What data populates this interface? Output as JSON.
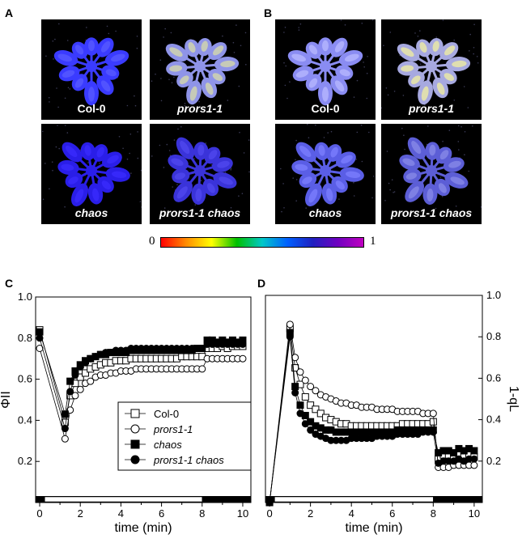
{
  "panels": {
    "a_letter": "A",
    "b_letter": "B",
    "c_letter": "C",
    "d_letter": "D"
  },
  "images": {
    "a": [
      {
        "label": "Col-0",
        "italic": false,
        "tint": "#3a3bff",
        "highlight": "#5a5cff"
      },
      {
        "label": "prors1-1",
        "italic": true,
        "tint": "#8f94e8",
        "highlight": "#d8dca8"
      },
      {
        "label": "chaos",
        "italic": true,
        "tint": "#2a1ee8",
        "highlight": "#3b2cff"
      },
      {
        "label": "prors1-1 chaos",
        "italic": true,
        "tint": "#3a33d9",
        "highlight": "#5149ef"
      }
    ],
    "b": [
      {
        "label": "Col-0",
        "italic": false,
        "tint": "#8a8cf2",
        "highlight": "#b8baff"
      },
      {
        "label": "prors1-1",
        "italic": true,
        "tint": "#a7a9e0",
        "highlight": "#f2f0a0"
      },
      {
        "label": "chaos",
        "italic": true,
        "tint": "#5a5ee6",
        "highlight": "#7d80ff"
      },
      {
        "label": "prors1-1 chaos",
        "italic": true,
        "tint": "#5c5ed6",
        "highlight": "#8a8ce8"
      }
    ]
  },
  "colorbar": {
    "min_label": "0",
    "max_label": "1",
    "colors": [
      "#ff0000",
      "#ff8c00",
      "#ffff00",
      "#00c000",
      "#00c8c8",
      "#0060ff",
      "#2020c0",
      "#7000c0",
      "#c000c0"
    ]
  },
  "chart_data": [
    {
      "type": "line",
      "panel": "C",
      "ylabel": "ΦII",
      "xlabel": "time (min)",
      "xlim": [
        -0.2,
        10.4
      ],
      "ylim": [
        0.0,
        1.0
      ],
      "xticks": [
        0,
        2,
        4,
        6,
        8,
        10
      ],
      "yticks": [
        0.2,
        0.4,
        0.6,
        0.8,
        1.0
      ],
      "light_bar": {
        "light_from": 0.25,
        "light_to": 8.0
      },
      "legend": {
        "position": "bottom-right"
      },
      "series": [
        {
          "name": "Col-0",
          "marker": "open-square",
          "x": [
            0,
            1.25,
            1.5,
            1.75,
            2.0,
            2.25,
            2.5,
            2.75,
            3.0,
            3.25,
            3.5,
            3.75,
            4.0,
            4.25,
            4.5,
            4.75,
            5.0,
            5.25,
            5.5,
            5.75,
            6.0,
            6.25,
            6.5,
            6.75,
            7.0,
            7.25,
            7.5,
            7.75,
            8.0,
            8.25,
            8.5,
            8.75,
            9.0,
            9.25,
            9.5,
            9.75,
            10.0
          ],
          "y": [
            0.84,
            0.39,
            0.52,
            0.58,
            0.61,
            0.63,
            0.65,
            0.66,
            0.67,
            0.68,
            0.68,
            0.69,
            0.69,
            0.69,
            0.7,
            0.7,
            0.7,
            0.7,
            0.7,
            0.7,
            0.7,
            0.7,
            0.7,
            0.7,
            0.71,
            0.71,
            0.71,
            0.71,
            0.71,
            0.75,
            0.75,
            0.75,
            0.76,
            0.75,
            0.76,
            0.76,
            0.76
          ]
        },
        {
          "name": "prors1-1",
          "marker": "open-circle",
          "x": [
            0,
            1.25,
            1.5,
            1.75,
            2.0,
            2.25,
            2.5,
            2.75,
            3.0,
            3.25,
            3.5,
            3.75,
            4.0,
            4.25,
            4.5,
            4.75,
            5.0,
            5.25,
            5.5,
            5.75,
            6.0,
            6.25,
            6.5,
            6.75,
            7.0,
            7.25,
            7.5,
            7.75,
            8.0,
            8.25,
            8.5,
            8.75,
            9.0,
            9.25,
            9.5,
            9.75,
            10.0
          ],
          "y": [
            0.75,
            0.31,
            0.45,
            0.52,
            0.55,
            0.58,
            0.59,
            0.61,
            0.62,
            0.62,
            0.63,
            0.63,
            0.64,
            0.64,
            0.64,
            0.65,
            0.65,
            0.65,
            0.65,
            0.65,
            0.65,
            0.65,
            0.65,
            0.65,
            0.65,
            0.65,
            0.65,
            0.65,
            0.65,
            0.7,
            0.7,
            0.7,
            0.7,
            0.7,
            0.7,
            0.7,
            0.7
          ]
        },
        {
          "name": "chaos",
          "marker": "filled-square",
          "x": [
            0,
            1.25,
            1.5,
            1.75,
            2.0,
            2.25,
            2.5,
            2.75,
            3.0,
            3.25,
            3.5,
            3.75,
            4.0,
            4.25,
            4.5,
            4.75,
            5.0,
            5.25,
            5.5,
            5.75,
            6.0,
            6.25,
            6.5,
            6.75,
            7.0,
            7.25,
            7.5,
            7.75,
            8.0,
            8.25,
            8.5,
            8.75,
            9.0,
            9.25,
            9.5,
            9.75,
            10.0
          ],
          "y": [
            0.83,
            0.43,
            0.59,
            0.64,
            0.67,
            0.69,
            0.7,
            0.71,
            0.72,
            0.72,
            0.73,
            0.73,
            0.73,
            0.73,
            0.74,
            0.74,
            0.74,
            0.74,
            0.74,
            0.74,
            0.74,
            0.74,
            0.74,
            0.74,
            0.74,
            0.74,
            0.74,
            0.75,
            0.75,
            0.79,
            0.79,
            0.78,
            0.79,
            0.78,
            0.79,
            0.78,
            0.79
          ]
        },
        {
          "name": "prors1-1 chaos",
          "marker": "filled-circle",
          "x": [
            0,
            1.25,
            1.5,
            1.75,
            2.0,
            2.25,
            2.5,
            2.75,
            3.0,
            3.25,
            3.5,
            3.75,
            4.0,
            4.25,
            4.5,
            4.75,
            5.0,
            5.25,
            5.5,
            5.75,
            6.0,
            6.25,
            6.5,
            6.75,
            7.0,
            7.25,
            7.5,
            7.75,
            8.0,
            8.25,
            8.5,
            8.75,
            9.0,
            9.25,
            9.5,
            9.75,
            10.0
          ],
          "y": [
            0.8,
            0.36,
            0.54,
            0.62,
            0.66,
            0.68,
            0.7,
            0.71,
            0.72,
            0.73,
            0.73,
            0.74,
            0.74,
            0.74,
            0.75,
            0.75,
            0.75,
            0.75,
            0.75,
            0.75,
            0.75,
            0.75,
            0.75,
            0.75,
            0.75,
            0.75,
            0.75,
            0.75,
            0.75,
            0.77,
            0.77,
            0.77,
            0.77,
            0.77,
            0.77,
            0.77,
            0.77
          ]
        }
      ]
    },
    {
      "type": "line",
      "panel": "D",
      "ylabel": "1-qL",
      "xlabel": "time (min)",
      "xlim": [
        -0.2,
        10.4
      ],
      "ylim": [
        0.0,
        1.0
      ],
      "xticks": [
        0,
        2,
        4,
        6,
        8,
        10
      ],
      "yticks": [
        0.2,
        0.4,
        0.6,
        0.8,
        1.0
      ],
      "light_bar": {
        "light_from": 0.25,
        "light_to": 8.0
      },
      "series": [
        {
          "name": "Col-0",
          "marker": "open-square",
          "x": [
            0,
            1.0,
            1.25,
            1.5,
            1.75,
            2.0,
            2.25,
            2.5,
            2.75,
            3.0,
            3.25,
            3.5,
            3.75,
            4.0,
            4.25,
            4.5,
            4.75,
            5.0,
            5.25,
            5.5,
            5.75,
            6.0,
            6.25,
            6.5,
            6.75,
            7.0,
            7.25,
            7.5,
            7.75,
            8.0,
            8.25,
            8.5,
            8.75,
            9.0,
            9.25,
            9.5,
            9.75,
            10.0
          ],
          "y": [
            0.0,
            0.84,
            0.65,
            0.57,
            0.51,
            0.47,
            0.45,
            0.43,
            0.41,
            0.4,
            0.39,
            0.38,
            0.38,
            0.37,
            0.37,
            0.37,
            0.37,
            0.37,
            0.37,
            0.37,
            0.37,
            0.37,
            0.37,
            0.38,
            0.38,
            0.38,
            0.38,
            0.38,
            0.38,
            0.39,
            0.21,
            0.23,
            0.23,
            0.22,
            0.23,
            0.22,
            0.23,
            0.22
          ]
        },
        {
          "name": "prors1-1",
          "marker": "open-circle",
          "x": [
            0,
            1.0,
            1.25,
            1.5,
            1.75,
            2.0,
            2.25,
            2.5,
            2.75,
            3.0,
            3.25,
            3.5,
            3.75,
            4.0,
            4.25,
            4.5,
            4.75,
            5.0,
            5.25,
            5.5,
            5.75,
            6.0,
            6.25,
            6.5,
            6.75,
            7.0,
            7.25,
            7.5,
            7.75,
            8.0,
            8.25,
            8.5,
            8.75,
            9.0,
            9.25,
            9.5,
            9.75,
            10.0
          ],
          "y": [
            0.0,
            0.86,
            0.7,
            0.63,
            0.59,
            0.56,
            0.54,
            0.52,
            0.51,
            0.5,
            0.49,
            0.48,
            0.48,
            0.47,
            0.47,
            0.46,
            0.46,
            0.46,
            0.45,
            0.45,
            0.45,
            0.45,
            0.44,
            0.44,
            0.44,
            0.44,
            0.44,
            0.43,
            0.43,
            0.43,
            0.17,
            0.17,
            0.17,
            0.18,
            0.18,
            0.18,
            0.18,
            0.18
          ]
        },
        {
          "name": "chaos",
          "marker": "filled-square",
          "x": [
            0,
            1.0,
            1.25,
            1.5,
            1.75,
            2.0,
            2.25,
            2.5,
            2.75,
            3.0,
            3.25,
            3.5,
            3.75,
            4.0,
            4.25,
            4.5,
            4.75,
            5.0,
            5.25,
            5.5,
            5.75,
            6.0,
            6.25,
            6.5,
            6.75,
            7.0,
            7.25,
            7.5,
            7.75,
            8.0,
            8.25,
            8.5,
            8.75,
            9.0,
            9.25,
            9.5,
            9.75,
            10.0
          ],
          "y": [
            0.0,
            0.82,
            0.56,
            0.47,
            0.42,
            0.39,
            0.37,
            0.36,
            0.35,
            0.35,
            0.34,
            0.34,
            0.34,
            0.34,
            0.34,
            0.34,
            0.34,
            0.34,
            0.34,
            0.34,
            0.34,
            0.34,
            0.35,
            0.35,
            0.35,
            0.35,
            0.35,
            0.35,
            0.35,
            0.35,
            0.24,
            0.25,
            0.25,
            0.24,
            0.26,
            0.25,
            0.26,
            0.25
          ]
        },
        {
          "name": "prors1-1 chaos",
          "marker": "filled-circle",
          "x": [
            0,
            1.0,
            1.25,
            1.5,
            1.75,
            2.0,
            2.25,
            2.5,
            2.75,
            3.0,
            3.25,
            3.5,
            3.75,
            4.0,
            4.25,
            4.5,
            4.75,
            5.0,
            5.25,
            5.5,
            5.75,
            6.0,
            6.25,
            6.5,
            6.75,
            7.0,
            7.25,
            7.5,
            7.75,
            8.0,
            8.25,
            8.5,
            8.75,
            9.0,
            9.25,
            9.5,
            9.75,
            10.0
          ],
          "y": [
            0.0,
            0.8,
            0.53,
            0.43,
            0.38,
            0.35,
            0.33,
            0.32,
            0.31,
            0.3,
            0.3,
            0.3,
            0.3,
            0.31,
            0.31,
            0.31,
            0.31,
            0.31,
            0.32,
            0.32,
            0.32,
            0.32,
            0.33,
            0.33,
            0.33,
            0.33,
            0.33,
            0.34,
            0.34,
            0.34,
            0.19,
            0.2,
            0.2,
            0.2,
            0.21,
            0.2,
            0.21,
            0.21
          ]
        }
      ]
    }
  ]
}
